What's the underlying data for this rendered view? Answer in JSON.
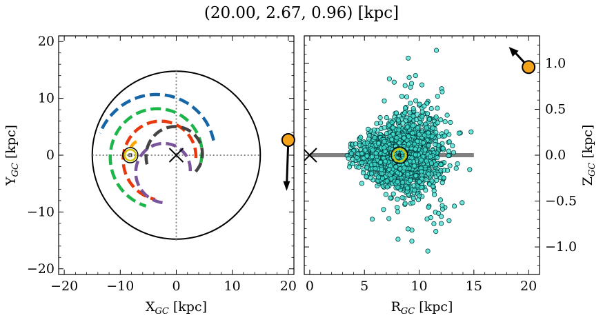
{
  "figure": {
    "title": "(20.00, 2.67, 0.96) [kpc]"
  },
  "chart_data": [
    {
      "type": "scatter",
      "panel": "left",
      "xlabel": "X",
      "xlabel_sub": "GC",
      "xlabel_unit": " [kpc]",
      "ylabel": "Y",
      "ylabel_sub": "GC",
      "ylabel_unit": " [kpc]",
      "xlim": [
        -21,
        21
      ],
      "ylim": [
        -21,
        21
      ],
      "x_ticks": [
        -20,
        -10,
        0,
        10,
        20
      ],
      "y_ticks": [
        -20,
        -10,
        0,
        10,
        20
      ],
      "x_tick_labels": [
        "−20",
        "−10",
        "0",
        "10",
        "20"
      ],
      "y_tick_labels": [
        "−20",
        "−10",
        "0",
        "10",
        "20"
      ],
      "boundary_circle_radius": 15,
      "galactic_center": [
        0,
        0
      ],
      "sun": [
        -8.2,
        0
      ],
      "spiral_arms": [
        {
          "color": "#1565a7",
          "radius": 10.0,
          "angle_start": 15,
          "angle_end": 160,
          "center": [
            -3,
            0
          ]
        },
        {
          "color": "#1cb54a",
          "radius": 7.5,
          "angle_start": -10,
          "angle_end": 255,
          "center": [
            -3,
            0
          ]
        },
        {
          "color": "#e8380d",
          "radius": 6.0,
          "angle_start": 0,
          "angle_end": 260,
          "center": [
            -2.5,
            -0.5
          ]
        },
        {
          "color": "#7b559b",
          "radius": 4.5,
          "angle_start": 0,
          "angle_end": 270,
          "center": [
            -2,
            -2.8
          ]
        },
        {
          "color": "#ffa500",
          "radius": 2.2,
          "angle_start": 120,
          "angle_end": 160,
          "center": [
            -6,
            0.5
          ]
        },
        {
          "color": "#444444",
          "radius": 4.5,
          "angle_start": -40,
          "angle_end": 200,
          "center": [
            0,
            0
          ]
        }
      ],
      "object": {
        "x": 20.0,
        "y": 2.67,
        "velocity_dx": -0.3,
        "velocity_dy": -7.5,
        "color": "#f5a31a"
      }
    },
    {
      "type": "scatter",
      "panel": "right",
      "xlabel": "R",
      "xlabel_sub": "GC",
      "xlabel_unit": " [kpc]",
      "ylabel": "Z",
      "ylabel_sub": "GC",
      "ylabel_unit": " [kpc]",
      "xlim": [
        -0.5,
        21
      ],
      "ylim": [
        -1.3,
        1.3
      ],
      "x_ticks": [
        0,
        5,
        10,
        15,
        20
      ],
      "y_ticks": [
        -1.0,
        -0.5,
        0.0,
        0.5,
        1.0
      ],
      "x_tick_labels": [
        "0",
        "5",
        "10",
        "15",
        "20"
      ],
      "y_tick_labels": [
        "−1.0",
        "−0.5",
        "0.0",
        "0.5",
        "1.0"
      ],
      "disk_band": {
        "r_start": 0,
        "r_end": 15,
        "z": 0,
        "color": "#808080"
      },
      "galactic_center": [
        0,
        0
      ],
      "sun": [
        8.2,
        0
      ],
      "stars": {
        "count": 1800,
        "r_center": 8.5,
        "r_spread": 2.2,
        "z_spread": 0.18,
        "color": "#40e0d0"
      },
      "object": {
        "r": 20.0,
        "z": 0.96,
        "velocity_dr": -1.8,
        "velocity_dz": 0.22,
        "color": "#f5a31a"
      }
    }
  ]
}
